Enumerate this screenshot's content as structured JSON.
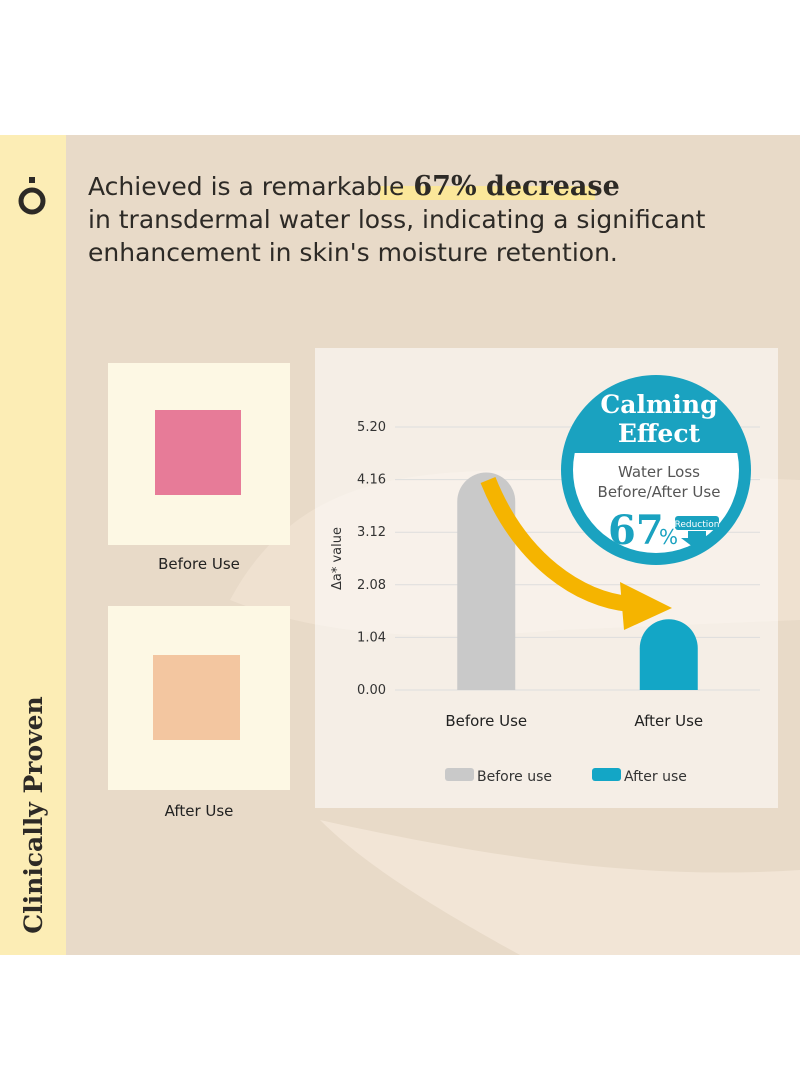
{
  "headline": {
    "line1": "Achieved is a remarkable",
    "highlight": "67% decrease",
    "line2": "in transdermal water loss, indicating a significant",
    "line3": "enhancement in skin's moisture retention."
  },
  "side_label": "Clinically Proven",
  "swatches": [
    {
      "label": "Before Use"
    },
    {
      "label": "After Use"
    }
  ],
  "badge": {
    "title1": "Calming",
    "title2": "Effect",
    "text1": "Water Loss",
    "text2": "Before/After Use",
    "number": "67",
    "unit": "%",
    "tag": "Reduction"
  },
  "chart_data": {
    "type": "bar",
    "y_label": "Δa* value",
    "categories": [
      "Before Use",
      "After Use"
    ],
    "series": [
      {
        "name": "Before use",
        "color": "#c9c9c9",
        "values": [
          4.3,
          null
        ]
      },
      {
        "name": "After use",
        "color": "#13a6c6",
        "values": [
          null,
          1.4
        ]
      }
    ],
    "ylim": [
      0,
      5.2
    ],
    "yticks": [
      {
        "value": 0,
        "label": "0.00"
      },
      1.04,
      2.08,
      3.12,
      4.16,
      {
        "value": 5.2,
        "label": "5.20"
      }
    ],
    "grid": true
  }
}
